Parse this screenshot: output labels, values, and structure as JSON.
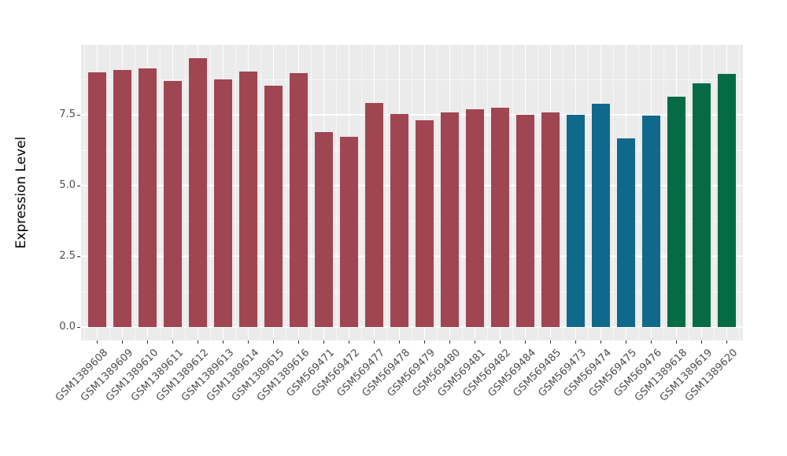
{
  "figure": {
    "background": "#FFFFFF",
    "panel_background": "#EBEBEB",
    "gridline_color": "#FFFFFF",
    "axis_text_color": "#4D4D4D",
    "axis_title_color": "#000000",
    "tick_color": "#333333"
  },
  "chart_data": {
    "type": "bar",
    "title": "",
    "xlabel": "",
    "ylabel": "Expression Level",
    "ylim": [
      0,
      9.97
    ],
    "yticks": [
      0,
      2.5,
      5,
      7.5
    ],
    "ytick_labels": [
      "0.0",
      "2.5",
      "5.0",
      "7.5"
    ],
    "grid": "on",
    "legend": "none",
    "categories": [
      "GSM1389608",
      "GSM1389609",
      "GSM1389610",
      "GSM1389611",
      "GSM1389612",
      "GSM1389613",
      "GSM1389614",
      "GSM1389615",
      "GSM1389616",
      "GSM569471",
      "GSM569472",
      "GSM569477",
      "GSM569478",
      "GSM569479",
      "GSM569480",
      "GSM569481",
      "GSM569482",
      "GSM569484",
      "GSM569485",
      "GSM569473",
      "GSM569474",
      "GSM569475",
      "GSM569476",
      "GSM1389618",
      "GSM1389619",
      "GSM1389620"
    ],
    "values": [
      9.0,
      9.07,
      9.15,
      8.7,
      9.5,
      8.76,
      9.03,
      8.54,
      8.98,
      6.9,
      6.73,
      7.92,
      7.54,
      7.31,
      7.59,
      7.69,
      7.76,
      7.5,
      7.59,
      7.5,
      7.9,
      6.67,
      7.46,
      8.15,
      8.62,
      8.94
    ],
    "bar_groups": [
      "red",
      "red",
      "red",
      "red",
      "red",
      "red",
      "red",
      "red",
      "red",
      "red",
      "red",
      "red",
      "red",
      "red",
      "red",
      "red",
      "red",
      "red",
      "red",
      "blue",
      "blue",
      "blue",
      "blue",
      "green",
      "green",
      "green"
    ],
    "group_colors": {
      "red": "#A04552",
      "blue": "#10698B",
      "green": "#046B45"
    }
  }
}
